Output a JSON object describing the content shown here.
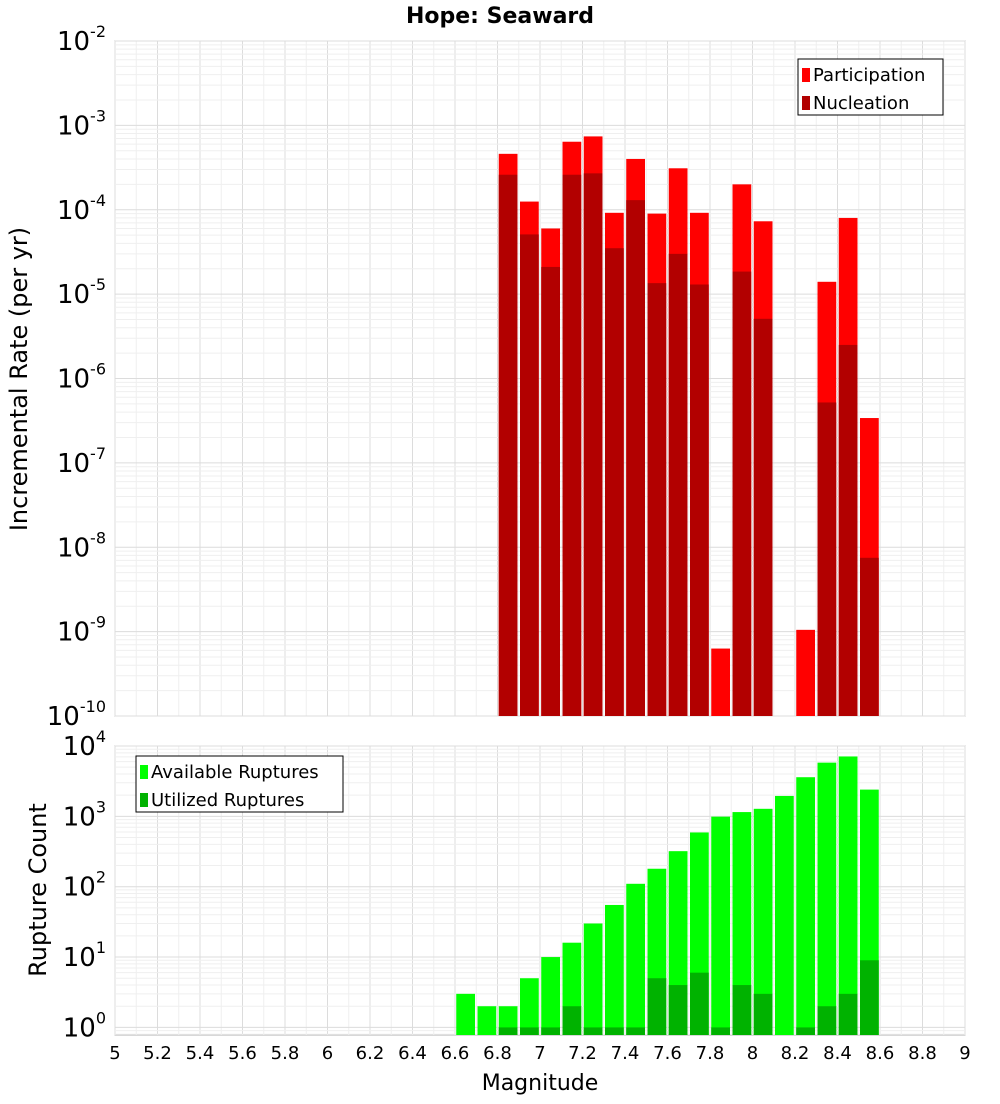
{
  "chart_data": [
    {
      "type": "bar",
      "title": "Hope: Seaward",
      "xlabel": "",
      "ylabel": "Incremental Rate (per yr)",
      "yscale": "log",
      "ylim": [
        1e-10,
        0.01
      ],
      "xlim": [
        5,
        9
      ],
      "y_tick_exponents": [
        -10,
        -9,
        -8,
        -7,
        -6,
        -5,
        -4,
        -3,
        -2
      ],
      "legend": {
        "placement": "top-right",
        "entries": [
          "Participation",
          "Nucleation"
        ]
      },
      "grid": true,
      "x": [
        6.85,
        6.95,
        7.05,
        7.15,
        7.25,
        7.35,
        7.45,
        7.55,
        7.65,
        7.75,
        7.85,
        7.95,
        8.05,
        8.25,
        8.35,
        8.45,
        8.55
      ],
      "series": [
        {
          "name": "Participation",
          "color": "#ff0000",
          "values": [
            0.00046,
            0.000125,
            6e-05,
            0.00064,
            0.00074,
            9.2e-05,
            0.0004,
            9e-05,
            0.00031,
            9.2e-05,
            6.3e-10,
            0.0002,
            7.3e-05,
            1.05e-09,
            1.4e-05,
            8e-05,
            3.4e-07
          ]
        },
        {
          "name": "Nucleation",
          "color": "#b20000",
          "values": [
            0.00026,
            5.1e-05,
            2.1e-05,
            0.00026,
            0.00027,
            3.5e-05,
            0.00013,
            1.35e-05,
            3e-05,
            1.3e-05,
            null,
            1.85e-05,
            5.1e-06,
            null,
            5.2e-07,
            2.5e-06,
            7.5e-09
          ]
        }
      ]
    },
    {
      "type": "bar",
      "title": "",
      "xlabel": "Magnitude",
      "ylabel": "Rupture Count",
      "yscale": "log",
      "ylim": [
        0.78,
        10000
      ],
      "xlim": [
        5,
        9
      ],
      "y_tick_exponents": [
        0,
        1,
        2,
        3,
        4
      ],
      "x_ticks": [
        "5",
        "5.2",
        "5.4",
        "5.6",
        "5.8",
        "6",
        "6.2",
        "6.4",
        "6.6",
        "6.8",
        "7",
        "7.2",
        "7.4",
        "7.6",
        "7.8",
        "8",
        "8.2",
        "8.4",
        "8.6",
        "8.8",
        "9"
      ],
      "legend": {
        "placement": "top-left",
        "entries": [
          "Available Ruptures",
          "Utilized Ruptures"
        ]
      },
      "grid": true,
      "x": [
        6.65,
        6.75,
        6.85,
        6.95,
        7.05,
        7.15,
        7.25,
        7.35,
        7.45,
        7.55,
        7.65,
        7.75,
        7.85,
        7.95,
        8.05,
        8.15,
        8.25,
        8.35,
        8.45,
        8.55
      ],
      "series": [
        {
          "name": "Available Ruptures",
          "color": "#00ff00",
          "values": [
            3,
            2,
            2,
            5,
            10,
            16,
            30,
            55,
            110,
            180,
            320,
            590,
            990,
            1150,
            1280,
            1950,
            3600,
            5800,
            7100,
            2400
          ]
        },
        {
          "name": "Utilized Ruptures",
          "color": "#00b200",
          "values": [
            null,
            null,
            1,
            1,
            1,
            2,
            1,
            1,
            1,
            5,
            4,
            6,
            1,
            4,
            3,
            null,
            1,
            2,
            3,
            9
          ]
        }
      ]
    }
  ]
}
